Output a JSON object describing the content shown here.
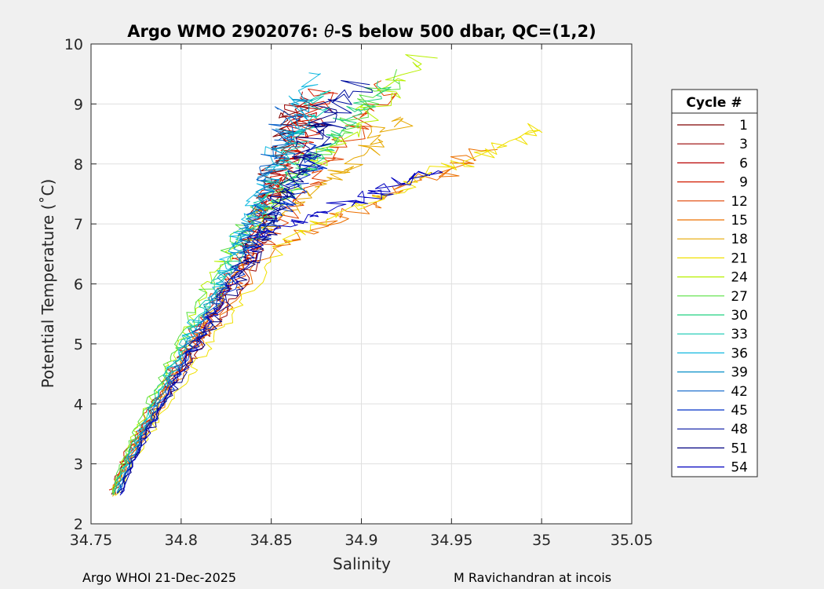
{
  "chart_data": {
    "type": "line",
    "title_prefix": "Argo WMO 2902076: ",
    "title_symbol": "θ",
    "title_suffix": "-S below 500 dbar,  QC=(1,2)",
    "xlabel": "Salinity",
    "ylabel": "Potential Temperature (˚C)",
    "xlim": [
      34.75,
      35.05
    ],
    "ylim": [
      2,
      10
    ],
    "xticks": [
      "34.75",
      "34.8",
      "34.85",
      "34.9",
      "34.95",
      "35",
      "35.05"
    ],
    "yticks": [
      "2",
      "3",
      "4",
      "5",
      "6",
      "7",
      "8",
      "9",
      "10"
    ],
    "grid": true,
    "legend_title": "Cycle #",
    "legend_position": "right",
    "series": [
      {
        "name": "1",
        "color": "#800000",
        "top": [
          34.862,
          8.95
        ],
        "mid": [
          34.835,
          6.3
        ],
        "bottom": [
          34.762,
          2.5
        ]
      },
      {
        "name": "3",
        "color": "#990000",
        "top": [
          34.868,
          9.05
        ],
        "mid": [
          34.838,
          6.2
        ],
        "bottom": [
          34.763,
          2.5
        ]
      },
      {
        "name": "6",
        "color": "#b80000",
        "top": [
          34.873,
          9.15
        ],
        "mid": [
          34.832,
          6.25
        ],
        "bottom": [
          34.762,
          2.55
        ]
      },
      {
        "name": "9",
        "color": "#d21b00",
        "top": [
          34.88,
          9.25
        ],
        "mid": [
          34.83,
          6.3
        ],
        "bottom": [
          34.761,
          2.55
        ]
      },
      {
        "name": "12",
        "color": "#e04200",
        "top": [
          34.915,
          9.3
        ],
        "mid": [
          34.84,
          6.4
        ],
        "bottom": [
          34.762,
          2.5
        ]
      },
      {
        "name": "15",
        "color": "#ec7000",
        "top": [
          34.97,
          8.2
        ],
        "mid": [
          34.85,
          6.6
        ],
        "bottom": [
          34.762,
          2.5
        ]
      },
      {
        "name": "18",
        "color": "#e6a800",
        "top": [
          34.925,
          8.8
        ],
        "mid": [
          34.84,
          6.7
        ],
        "bottom": [
          34.763,
          2.45
        ]
      },
      {
        "name": "21",
        "color": "#f0e000",
        "top": [
          35.0,
          8.6
        ],
        "mid": [
          34.86,
          6.8
        ],
        "bottom": [
          34.764,
          2.45
        ]
      },
      {
        "name": "24",
        "color": "#b8f000",
        "top": [
          34.935,
          9.8
        ],
        "mid": [
          34.825,
          6.5
        ],
        "bottom": [
          34.762,
          2.5
        ]
      },
      {
        "name": "27",
        "color": "#58e040",
        "top": [
          34.92,
          9.5
        ],
        "mid": [
          34.83,
          6.8
        ],
        "bottom": [
          34.762,
          2.5
        ]
      },
      {
        "name": "30",
        "color": "#20d080",
        "top": [
          34.91,
          9.3
        ],
        "mid": [
          34.835,
          6.7
        ],
        "bottom": [
          34.762,
          2.5
        ]
      },
      {
        "name": "33",
        "color": "#10c8b0",
        "top": [
          34.88,
          9.2
        ],
        "mid": [
          34.83,
          6.5
        ],
        "bottom": [
          34.763,
          2.5
        ]
      },
      {
        "name": "36",
        "color": "#10b8e0",
        "top": [
          34.875,
          9.5
        ],
        "mid": [
          34.825,
          6.3
        ],
        "bottom": [
          34.764,
          2.5
        ]
      },
      {
        "name": "39",
        "color": "#0890c8",
        "top": [
          34.87,
          9.1
        ],
        "mid": [
          34.83,
          6.4
        ],
        "bottom": [
          34.765,
          2.5
        ]
      },
      {
        "name": "42",
        "color": "#0860c8",
        "top": [
          34.86,
          8.9
        ],
        "mid": [
          34.835,
          6.5
        ],
        "bottom": [
          34.765,
          2.5
        ]
      },
      {
        "name": "45",
        "color": "#0030c8",
        "top": [
          34.88,
          8.3
        ],
        "mid": [
          34.84,
          6.6
        ],
        "bottom": [
          34.766,
          2.5
        ]
      },
      {
        "name": "48",
        "color": "#0010a0",
        "top": [
          34.9,
          9.4
        ],
        "mid": [
          34.84,
          6.7
        ],
        "bottom": [
          34.766,
          2.5
        ]
      },
      {
        "name": "51",
        "color": "#000080",
        "top": [
          34.88,
          9.0
        ],
        "mid": [
          34.845,
          6.6
        ],
        "bottom": [
          34.766,
          2.5
        ]
      },
      {
        "name": "54",
        "color": "#0000c0",
        "top": [
          34.94,
          7.9
        ],
        "mid": [
          34.845,
          6.8
        ],
        "bottom": [
          34.767,
          2.5
        ]
      }
    ]
  },
  "footer": {
    "left": "Argo WHOI 21-Dec-2025",
    "right": "M Ravichandran at incois"
  }
}
